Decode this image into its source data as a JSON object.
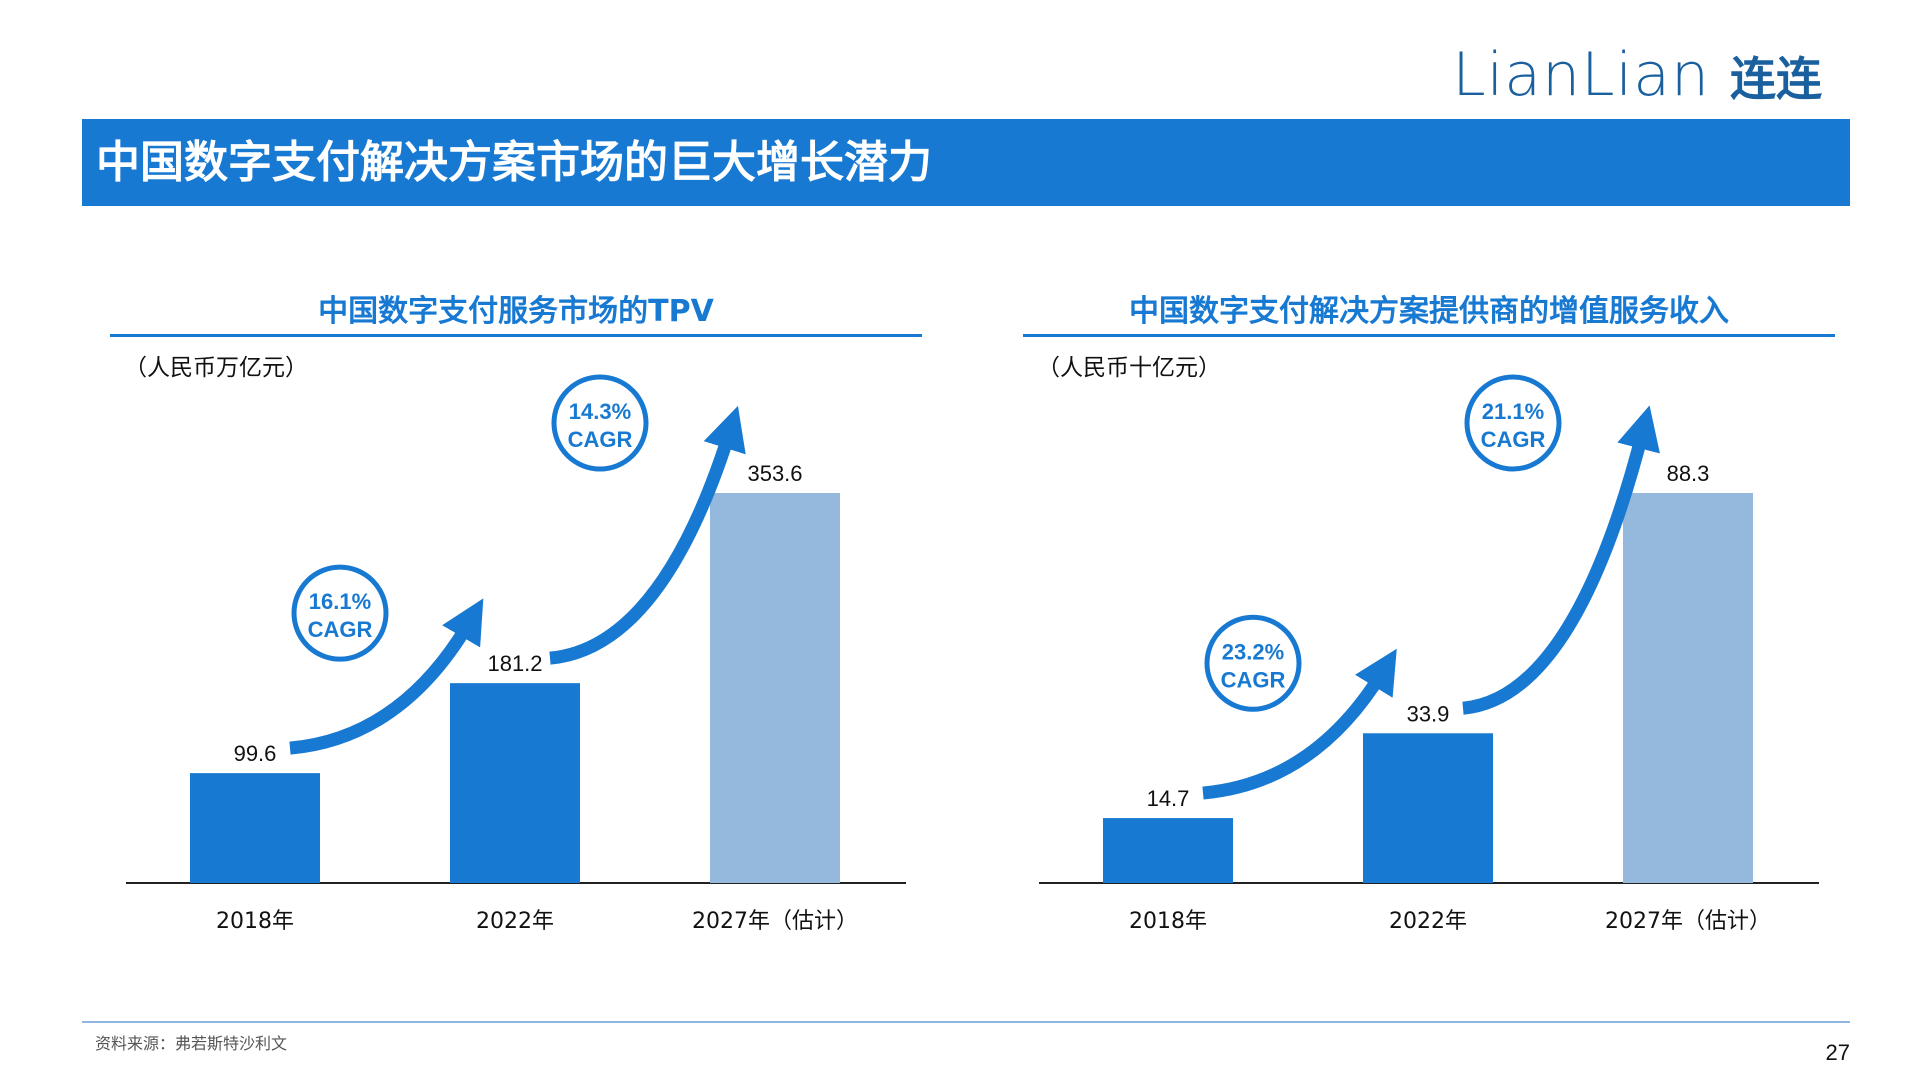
{
  "logo": {
    "en": "LianLian",
    "cn": "连连"
  },
  "title": "中国数字支付解决方案市场的巨大增长潜力",
  "footer": {
    "source": "资料来源：弗若斯特沙利文",
    "page": "27"
  },
  "colors": {
    "accent": "#1779d1",
    "estimate_bar": "#94b9dc"
  },
  "chart_data": [
    {
      "type": "bar",
      "title": "中国数字支付服务市场的TPV",
      "unit": "（人民币万亿元）",
      "categories": [
        "2018年",
        "2022年",
        "2027年（估计）"
      ],
      "values": [
        99.6,
        181.2,
        353.6
      ],
      "value_labels": [
        "99.6",
        "181.2",
        "353.6"
      ],
      "bar_colors": [
        "#1779d1",
        "#1779d1",
        "#94b9dc"
      ],
      "ylim": [
        0,
        400
      ],
      "cagr": [
        {
          "from": 0,
          "to": 1,
          "rate": "16.1%",
          "label": "CAGR"
        },
        {
          "from": 1,
          "to": 2,
          "rate": "14.3%",
          "label": "CAGR"
        }
      ]
    },
    {
      "type": "bar",
      "title": "中国数字支付解决方案提供商的增值服务收入",
      "unit": "（人民币十亿元）",
      "categories": [
        "2018年",
        "2022年",
        "2027年（估计）"
      ],
      "values": [
        14.7,
        33.9,
        88.3
      ],
      "value_labels": [
        "14.7",
        "33.9",
        "88.3"
      ],
      "bar_colors": [
        "#1779d1",
        "#1779d1",
        "#94b9dc"
      ],
      "ylim": [
        0,
        100
      ],
      "cagr": [
        {
          "from": 0,
          "to": 1,
          "rate": "23.2%",
          "label": "CAGR"
        },
        {
          "from": 1,
          "to": 2,
          "rate": "21.1%",
          "label": "CAGR"
        }
      ]
    }
  ]
}
